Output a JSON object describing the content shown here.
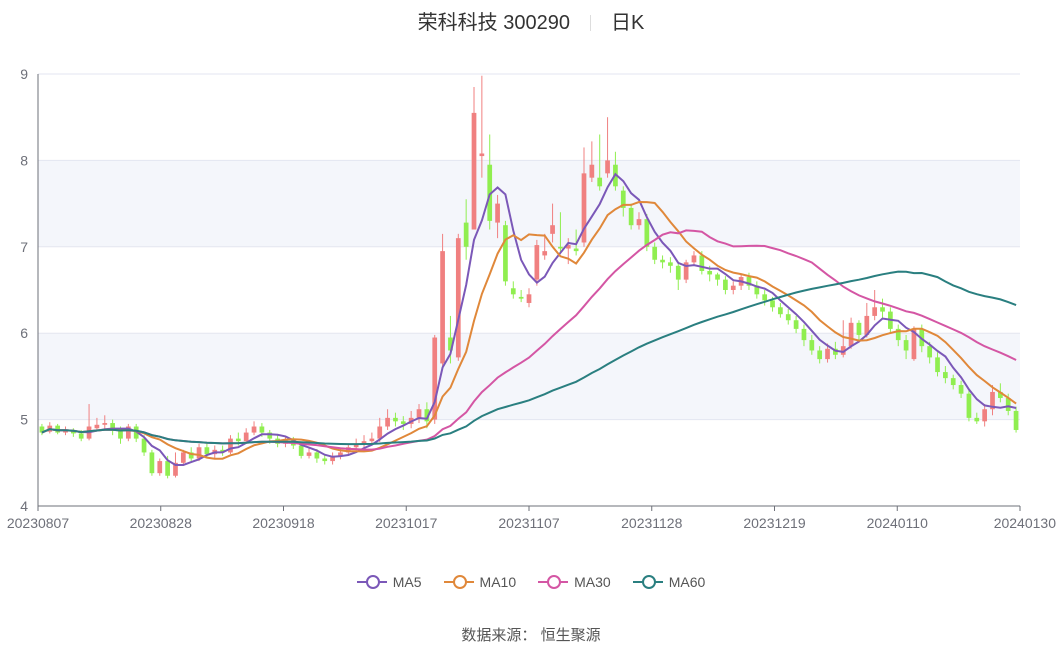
{
  "title": {
    "name": "荣科科技 300290",
    "period": "日K"
  },
  "source_text": "数据来源： 恒生聚源",
  "chart_data": {
    "type": "candlestick",
    "ylim": [
      4,
      9
    ],
    "yticks": [
      "4",
      "5",
      "6",
      "7",
      "8",
      "9"
    ],
    "xticks": [
      "20230807",
      "20230828",
      "20230918",
      "20231017",
      "20231107",
      "20231128",
      "20231219",
      "20240110",
      "20240130"
    ],
    "up_color": "#f08080",
    "down_color": "#90ee50",
    "candles": [
      [
        4.92,
        4.85,
        4.95,
        4.82
      ],
      [
        4.86,
        4.93,
        4.97,
        4.84
      ],
      [
        4.93,
        4.85,
        4.95,
        4.83
      ],
      [
        4.85,
        4.88,
        4.92,
        4.82
      ],
      [
        4.88,
        4.84,
        4.9,
        4.8
      ],
      [
        4.84,
        4.78,
        4.88,
        4.75
      ],
      [
        4.78,
        4.92,
        5.18,
        4.76
      ],
      [
        4.9,
        4.94,
        5.02,
        4.87
      ],
      [
        4.94,
        4.96,
        5.05,
        4.88
      ],
      [
        4.96,
        4.88,
        5.0,
        4.82
      ],
      [
        4.88,
        4.78,
        4.92,
        4.72
      ],
      [
        4.78,
        4.92,
        4.95,
        4.75
      ],
      [
        4.92,
        4.78,
        4.95,
        4.74
      ],
      [
        4.78,
        4.62,
        4.82,
        4.58
      ],
      [
        4.62,
        4.38,
        4.65,
        4.35
      ],
      [
        4.38,
        4.52,
        4.55,
        4.35
      ],
      [
        4.52,
        4.35,
        4.58,
        4.32
      ],
      [
        4.35,
        4.5,
        4.62,
        4.33
      ],
      [
        4.5,
        4.62,
        4.65,
        4.47
      ],
      [
        4.62,
        4.55,
        4.68,
        4.5
      ],
      [
        4.55,
        4.68,
        4.72,
        4.52
      ],
      [
        4.68,
        4.6,
        4.72,
        4.55
      ],
      [
        4.6,
        4.65,
        4.7,
        4.55
      ],
      [
        4.65,
        4.62,
        4.7,
        4.58
      ],
      [
        4.62,
        4.78,
        4.82,
        4.6
      ],
      [
        4.78,
        4.75,
        4.85,
        4.7
      ],
      [
        4.75,
        4.85,
        4.9,
        4.72
      ],
      [
        4.85,
        4.92,
        4.98,
        4.82
      ],
      [
        4.92,
        4.85,
        4.96,
        4.8
      ],
      [
        4.85,
        4.78,
        4.88,
        4.72
      ],
      [
        4.78,
        4.72,
        4.82,
        4.68
      ],
      [
        4.72,
        4.76,
        4.8,
        4.68
      ],
      [
        4.76,
        4.7,
        4.8,
        4.66
      ],
      [
        4.7,
        4.58,
        4.74,
        4.55
      ],
      [
        4.58,
        4.62,
        4.68,
        4.55
      ],
      [
        4.62,
        4.55,
        4.66,
        4.5
      ],
      [
        4.55,
        4.52,
        4.6,
        4.48
      ],
      [
        4.52,
        4.58,
        4.62,
        4.48
      ],
      [
        4.58,
        4.62,
        4.66,
        4.54
      ],
      [
        4.62,
        4.68,
        4.72,
        4.58
      ],
      [
        4.68,
        4.72,
        4.78,
        4.62
      ],
      [
        4.72,
        4.75,
        4.82,
        4.66
      ],
      [
        4.75,
        4.78,
        4.85,
        4.7
      ],
      [
        4.78,
        4.92,
        5.02,
        4.74
      ],
      [
        4.92,
        5.02,
        5.12,
        4.88
      ],
      [
        5.02,
        4.98,
        5.08,
        4.92
      ],
      [
        4.98,
        4.95,
        5.04,
        4.88
      ],
      [
        4.95,
        5.02,
        5.1,
        4.9
      ],
      [
        5.02,
        5.12,
        5.18,
        4.96
      ],
      [
        5.12,
        4.98,
        5.2,
        4.9
      ],
      [
        5.0,
        5.95,
        5.98,
        4.95
      ],
      [
        5.65,
        6.95,
        7.15,
        5.6
      ],
      [
        5.95,
        5.8,
        6.2,
        5.65
      ],
      [
        5.72,
        7.1,
        7.15,
        5.68
      ],
      [
        7.28,
        7.0,
        7.55,
        6.85
      ],
      [
        7.2,
        8.55,
        8.85,
        7.2
      ],
      [
        8.05,
        8.08,
        8.98,
        7.8
      ],
      [
        7.95,
        7.3,
        8.3,
        7.2
      ],
      [
        7.28,
        7.5,
        7.6,
        7.1
      ],
      [
        7.25,
        6.6,
        7.3,
        6.55
      ],
      [
        6.52,
        6.45,
        6.6,
        6.4
      ],
      [
        6.42,
        6.4,
        6.5,
        6.36
      ],
      [
        6.35,
        6.45,
        6.52,
        6.3
      ],
      [
        6.62,
        7.02,
        7.08,
        6.55
      ],
      [
        6.9,
        6.95,
        7.15,
        6.85
      ],
      [
        7.15,
        7.25,
        7.5,
        7.05
      ],
      [
        7.0,
        6.98,
        7.4,
        6.92
      ],
      [
        6.98,
        7.02,
        7.1,
        6.8
      ],
      [
        6.98,
        6.95,
        7.2,
        6.9
      ],
      [
        7.05,
        7.85,
        8.15,
        7.0
      ],
      [
        7.8,
        7.95,
        8.22,
        7.75
      ],
      [
        7.8,
        7.7,
        8.3,
        7.65
      ],
      [
        7.85,
        8.0,
        8.5,
        7.8
      ],
      [
        7.95,
        7.7,
        8.1,
        7.65
      ],
      [
        7.65,
        7.45,
        7.7,
        7.35
      ],
      [
        7.45,
        7.25,
        7.5,
        7.2
      ],
      [
        7.25,
        7.32,
        7.4,
        7.2
      ],
      [
        7.32,
        7.0,
        7.38,
        6.95
      ],
      [
        7.0,
        6.85,
        7.05,
        6.8
      ],
      [
        6.85,
        6.82,
        6.9,
        6.75
      ],
      [
        6.82,
        6.78,
        6.88,
        6.7
      ],
      [
        6.78,
        6.62,
        6.82,
        6.5
      ],
      [
        6.62,
        6.82,
        6.85,
        6.58
      ],
      [
        6.82,
        6.9,
        6.95,
        6.78
      ],
      [
        6.9,
        6.72,
        6.95,
        6.68
      ],
      [
        6.72,
        6.68,
        6.78,
        6.6
      ],
      [
        6.68,
        6.62,
        6.7,
        6.55
      ],
      [
        6.62,
        6.5,
        6.66,
        6.45
      ],
      [
        6.5,
        6.55,
        6.6,
        6.45
      ],
      [
        6.55,
        6.65,
        6.68,
        6.5
      ],
      [
        6.65,
        6.55,
        6.7,
        6.5
      ],
      [
        6.55,
        6.45,
        6.6,
        6.4
      ],
      [
        6.45,
        6.38,
        6.5,
        6.32
      ],
      [
        6.38,
        6.3,
        6.42,
        6.25
      ],
      [
        6.3,
        6.22,
        6.35,
        6.18
      ],
      [
        6.22,
        6.15,
        6.28,
        6.1
      ],
      [
        6.15,
        6.05,
        6.2,
        6.0
      ],
      [
        6.05,
        5.92,
        6.1,
        5.85
      ],
      [
        5.92,
        5.8,
        5.98,
        5.75
      ],
      [
        5.8,
        5.7,
        5.85,
        5.65
      ],
      [
        5.7,
        5.82,
        5.88,
        5.66
      ],
      [
        5.82,
        5.75,
        5.9,
        5.7
      ],
      [
        5.75,
        5.85,
        6.15,
        5.72
      ],
      [
        5.85,
        6.12,
        6.18,
        5.82
      ],
      [
        6.12,
        5.98,
        6.15,
        5.92
      ],
      [
        5.98,
        6.2,
        6.35,
        5.95
      ],
      [
        6.2,
        6.3,
        6.5,
        6.15
      ],
      [
        6.3,
        6.25,
        6.4,
        6.18
      ],
      [
        6.25,
        6.05,
        6.3,
        6.0
      ],
      [
        6.05,
        5.92,
        6.1,
        5.85
      ],
      [
        5.92,
        5.8,
        5.98,
        5.7
      ],
      [
        5.7,
        6.05,
        6.08,
        5.68
      ],
      [
        6.05,
        5.85,
        6.1,
        5.78
      ],
      [
        5.85,
        5.72,
        5.9,
        5.65
      ],
      [
        5.72,
        5.55,
        5.78,
        5.5
      ],
      [
        5.55,
        5.48,
        5.62,
        5.42
      ],
      [
        5.48,
        5.4,
        5.52,
        5.35
      ],
      [
        5.4,
        5.3,
        5.45,
        5.25
      ],
      [
        5.3,
        5.02,
        5.35,
        4.98
      ],
      [
        5.02,
        4.98,
        5.08,
        4.95
      ],
      [
        4.98,
        5.12,
        5.18,
        4.92
      ],
      [
        5.12,
        5.32,
        5.4,
        5.05
      ],
      [
        5.32,
        5.25,
        5.42,
        5.2
      ],
      [
        5.25,
        5.1,
        5.3,
        5.05
      ],
      [
        5.1,
        4.88,
        5.15,
        4.85
      ]
    ],
    "series": [
      {
        "name": "MA5",
        "color": "#7b58b8"
      },
      {
        "name": "MA10",
        "color": "#e0883a"
      },
      {
        "name": "MA30",
        "color": "#d456a4"
      },
      {
        "name": "MA60",
        "color": "#2a7f80"
      }
    ]
  }
}
